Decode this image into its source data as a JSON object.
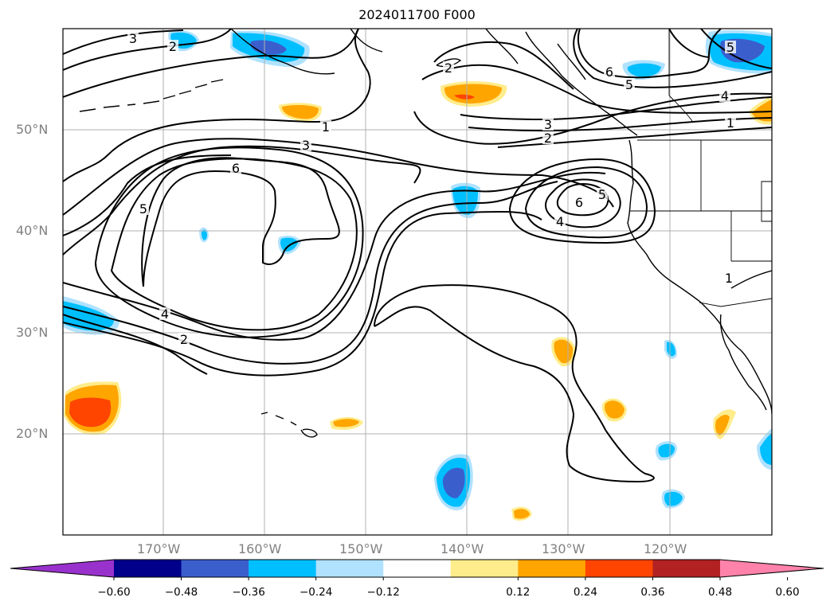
{
  "title": "2024011700 F000",
  "lat_labels": [
    "50°N",
    "40°N",
    "30°N",
    "20°N"
  ],
  "lon_labels": [
    "170°W",
    "160°W",
    "150°W",
    "140°W",
    "130°W",
    "120°W"
  ],
  "contour_labels": [
    "3",
    "2",
    "1",
    "3",
    "6",
    "5",
    "4",
    "2",
    "2",
    "3",
    "2",
    "6",
    "5",
    "4",
    "1",
    "5",
    "6",
    "4",
    "1",
    "5"
  ],
  "colorbar": {
    "extend": "both",
    "ticks": [
      "−0.60",
      "−0.48",
      "−0.36",
      "−0.24",
      "−0.12",
      "0.12",
      "0.24",
      "0.36",
      "0.48",
      "0.60"
    ],
    "colors": [
      "#9932cc",
      "#00008b",
      "#3a5fcd",
      "#00bfff",
      "#b0e2ff",
      "#ffffff",
      "#ffec8b",
      "#ffa500",
      "#ff4500",
      "#b22222",
      "#ff82ab"
    ]
  },
  "colors": {
    "land_line": "#000000",
    "grid": "#b0b0b0",
    "tick_label": "#808080"
  }
}
